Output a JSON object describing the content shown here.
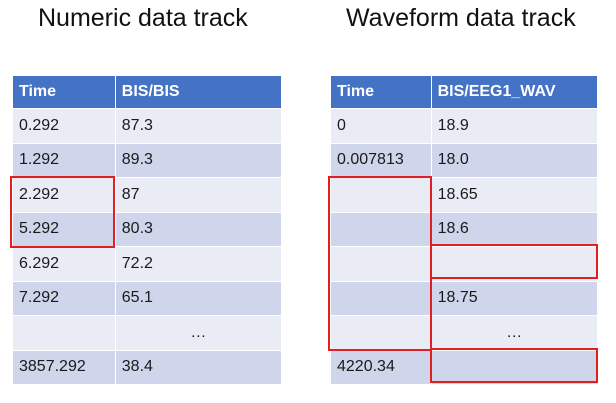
{
  "numeric": {
    "title": "Numeric data track",
    "headers": [
      "Time",
      "BIS/BIS"
    ],
    "rows": [
      [
        "0.292",
        "87.3"
      ],
      [
        "1.292",
        "89.3"
      ],
      [
        "2.292",
        "87"
      ],
      [
        "5.292",
        "80.3"
      ],
      [
        "6.292",
        "72.2"
      ],
      [
        "7.292",
        "65.1"
      ],
      [
        "",
        "…"
      ],
      [
        "3857.292",
        "38.4"
      ]
    ]
  },
  "waveform": {
    "title": "Waveform data track",
    "headers": [
      "Time",
      "BIS/EEG1_WAV"
    ],
    "rows": [
      [
        "0",
        "18.9"
      ],
      [
        "0.007813",
        "18.0"
      ],
      [
        "",
        "18.65"
      ],
      [
        "",
        "18.6"
      ],
      [
        "",
        ""
      ],
      [
        "",
        "18.75"
      ],
      [
        "",
        "…"
      ],
      [
        "4220.34",
        ""
      ]
    ]
  },
  "colors": {
    "header": "#4472c4",
    "row_dark": "#cfd5ea",
    "row_light": "#e9ebf5",
    "highlight": "#e02020"
  }
}
